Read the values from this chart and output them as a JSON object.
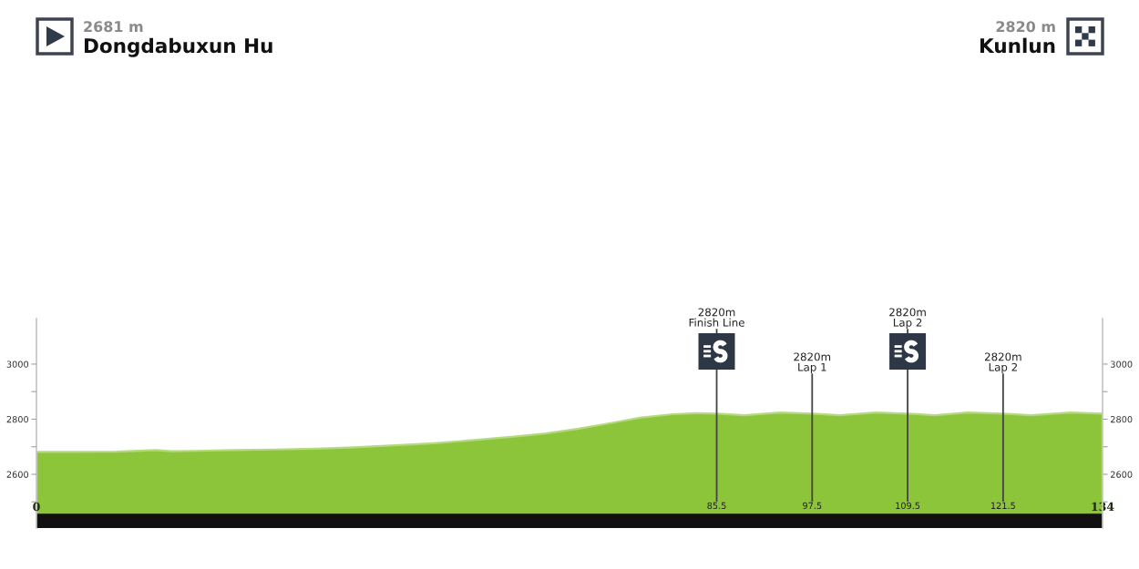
{
  "chart_data": {
    "type": "area",
    "color": "#8cc43a",
    "x": [
      0,
      5,
      10,
      15,
      17,
      20,
      25,
      30,
      35,
      40,
      45,
      50,
      55,
      60,
      64,
      68,
      72,
      76,
      80,
      83,
      85.5,
      89,
      93.5,
      97.5,
      101,
      105.5,
      109.5,
      113,
      117,
      121.5,
      125,
      130,
      134
    ],
    "values": [
      2681,
      2681,
      2682,
      2688,
      2684,
      2685,
      2688,
      2690,
      2693,
      2698,
      2705,
      2713,
      2724,
      2737,
      2748,
      2765,
      2785,
      2806,
      2818,
      2822,
      2820,
      2814,
      2824,
      2820,
      2814,
      2824,
      2820,
      2814,
      2824,
      2820,
      2814,
      2824,
      2820
    ],
    "xlim": [
      0,
      134
    ],
    "xticks": [
      0,
      85.5,
      97.5,
      109.5,
      121.5,
      134
    ],
    "ylim": [
      2405,
      3165
    ],
    "yticks": [
      {
        "value": 2500,
        "label": null
      },
      2600,
      {
        "value": 2700,
        "label": null
      },
      2800,
      {
        "value": 2900,
        "label": null
      },
      3000
    ],
    "y2lim": [
      2405,
      3165
    ],
    "y2ticks": [
      {
        "value": 2500,
        "label": null
      },
      2600,
      {
        "value": 2700,
        "label": null
      },
      2800,
      {
        "value": 2900,
        "label": null
      },
      3000
    ],
    "ref_lines": [
      {
        "axis": "x",
        "value": 85.5,
        "label": "2820m\nFinish Line",
        "color": "#444444"
      },
      {
        "axis": "x",
        "value": 97.5,
        "label": "2820m\nLap 1",
        "color": "#444444"
      },
      {
        "axis": "x",
        "value": 109.5,
        "label": "2820m\nLap 2",
        "color": "#444444"
      },
      {
        "axis": "x",
        "value": 121.5,
        "label": "2820m\nLap 2",
        "color": "#444444"
      }
    ],
    "bands": [
      {
        "axis": "y",
        "from": 2405,
        "to": 2457,
        "color": "#111111"
      }
    ],
    "annotations": [
      "2681 m",
      "Dongdabuxun Hu",
      "2820 m",
      "Kunlun"
    ]
  }
}
